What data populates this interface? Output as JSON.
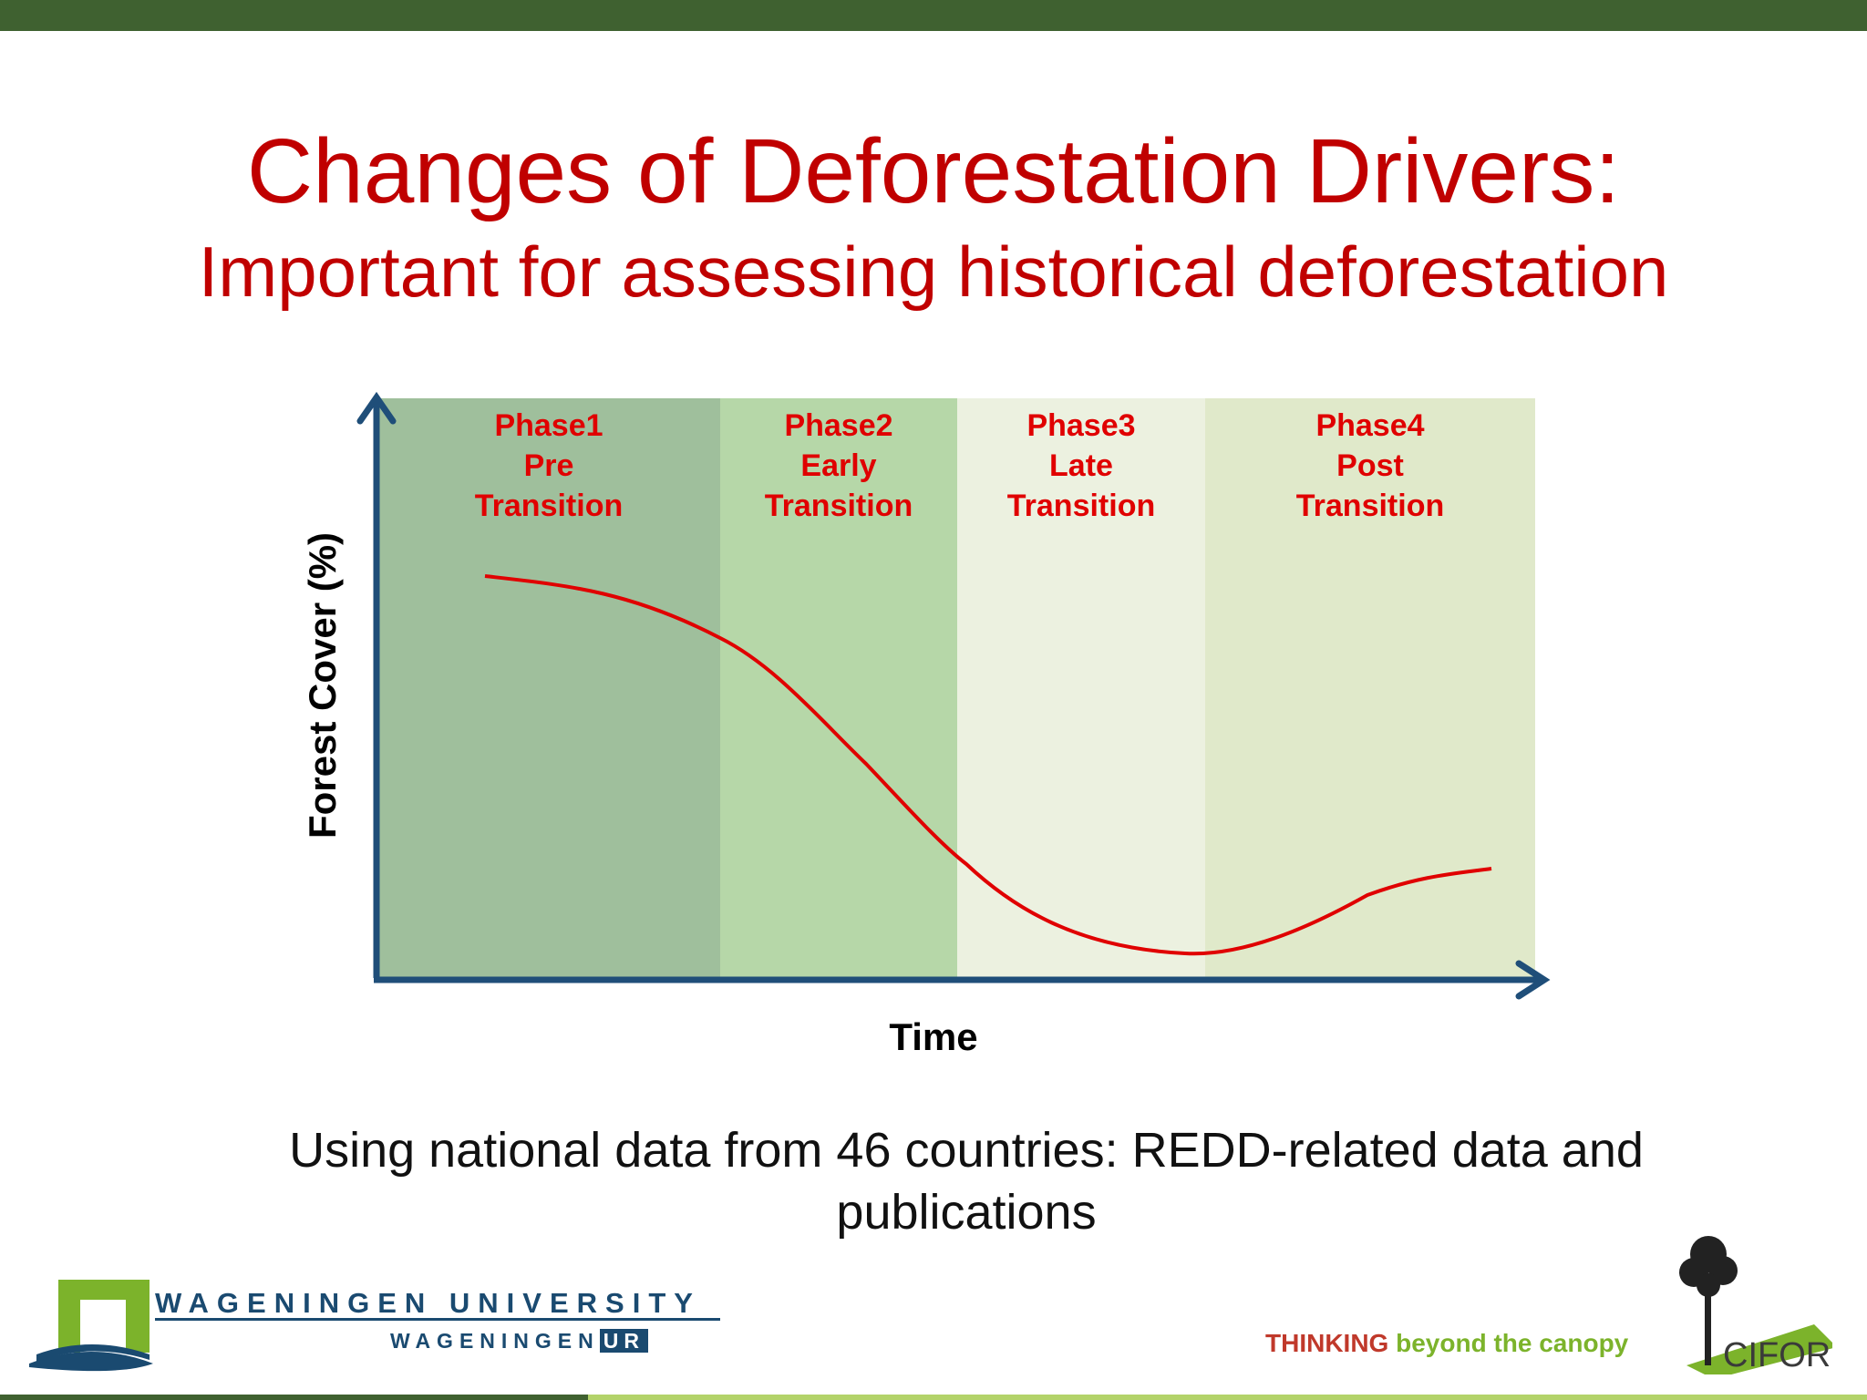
{
  "slide": {
    "title": "Changes of Deforestation Drivers:",
    "subtitle": "Important for assessing historical deforestation",
    "caption": "Using national data from 46 countries: REDD-related data and publications"
  },
  "chart_data": {
    "type": "line",
    "xlabel": "Time",
    "ylabel": "Forest Cover (%)",
    "phases": [
      {
        "name": "Phase1",
        "line2": "Pre",
        "line3": "Transition",
        "color": "#9fbf9c"
      },
      {
        "name": "Phase2",
        "line2": "Early",
        "line3": "Transition",
        "color": "#b6d7a8"
      },
      {
        "name": "Phase3",
        "line2": "Late",
        "line3": "Transition",
        "color": "#ecf1e0"
      },
      {
        "name": "Phase4",
        "line2": "Post",
        "line3": "Transition",
        "color": "#e0e9ca"
      }
    ],
    "phase_label_color": "#e00000",
    "axis_color": "#1f4e79",
    "curve_color": "#e00000",
    "grid": false,
    "legend": "none"
  },
  "footer": {
    "university_line1": "WAGENINGEN UNIVERSITY",
    "university_line2_a": "WAGENINGEN",
    "university_line2_b": "UR",
    "tagline_a": "THINKING",
    "tagline_b": " beyond the canopy",
    "cifor_logo_text": "CIFOR"
  }
}
